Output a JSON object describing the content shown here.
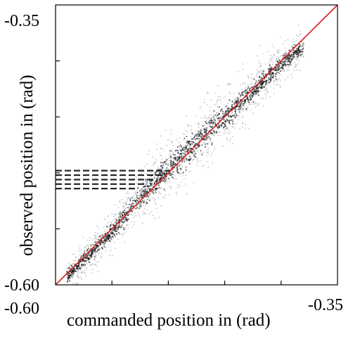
{
  "chart_data": {
    "type": "scatter",
    "title": "",
    "xlabel": "commanded position in (rad)",
    "ylabel": "observed position in (rad)",
    "xlim": [
      -0.6,
      -0.35
    ],
    "ylim": [
      -0.6,
      -0.35
    ],
    "x_tick_labels": {
      "min": "-0.60",
      "max": "-0.35"
    },
    "y_tick_labels": {
      "min": "-0.60",
      "max": "-0.35"
    },
    "grid": false,
    "legend": "none",
    "colors": {
      "points": "#000000",
      "reference_line": "#d62020"
    },
    "series": [
      {
        "kind": "reference_line",
        "x": [
          -0.6,
          -0.35
        ],
        "y": [
          -0.6,
          -0.35
        ]
      },
      {
        "kind": "dense_band_centerline",
        "x": [
          -0.59,
          -0.57,
          -0.55,
          -0.53,
          -0.51,
          -0.49,
          -0.47,
          -0.45,
          -0.43,
          -0.41,
          -0.39,
          -0.38
        ],
        "y": [
          -0.592,
          -0.573,
          -0.552,
          -0.528,
          -0.506,
          -0.487,
          -0.468,
          -0.45,
          -0.432,
          -0.412,
          -0.395,
          -0.388
        ]
      },
      {
        "kind": "horizontal_streaks",
        "x_start": [
          -0.6,
          -0.6,
          -0.6,
          -0.6,
          -0.6
        ],
        "x_end": [
          -0.498,
          -0.505,
          -0.512,
          -0.52,
          -0.528
        ],
        "y": [
          -0.498,
          -0.502,
          -0.506,
          -0.51,
          -0.514
        ]
      }
    ]
  }
}
